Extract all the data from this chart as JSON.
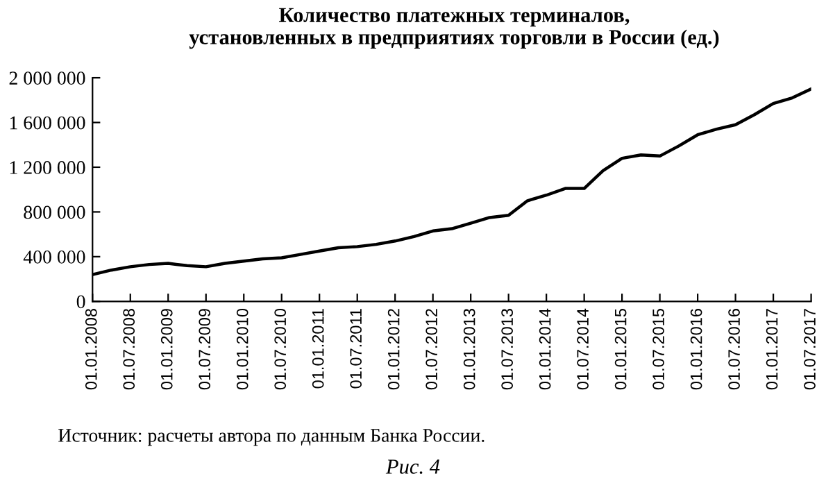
{
  "chart_data": {
    "type": "line",
    "title": "Количество платежных терминалов,\nустановленных в предприятиях торговли в России (ед.)",
    "categories": [
      "01.01.2008",
      null,
      "01.07.2008",
      null,
      "01.01.2009",
      null,
      "01.07.2009",
      null,
      "01.01.2010",
      null,
      "01.07.2010",
      null,
      "01.01.2011",
      null,
      "01.07.2011",
      null,
      "01.01.2012",
      null,
      "01.07.2012",
      null,
      "01.01.2013",
      null,
      "01.07.2013",
      null,
      "01.01.2014",
      null,
      "01.07.2014",
      null,
      "01.01.2015",
      null,
      "01.07.2015",
      null,
      "01.01.2016",
      null,
      "01.07.2016",
      null,
      "01.01.2017",
      null,
      "01.07.2017"
    ],
    "series": [
      {
        "color": "#000000",
        "values": [
          240000,
          280000,
          310000,
          330000,
          340000,
          320000,
          310000,
          340000,
          360000,
          380000,
          390000,
          420000,
          450000,
          480000,
          490000,
          510000,
          540000,
          580000,
          630000,
          650000,
          700000,
          750000,
          770000,
          900000,
          950000,
          1010000,
          1010000,
          1170000,
          1280000,
          1310000,
          1300000,
          1390000,
          1490000,
          1540000,
          1580000,
          1670000,
          1770000,
          1820000,
          1900000
        ]
      }
    ],
    "ylim": [
      0,
      2000000
    ],
    "yticks": [
      0,
      {
        "value": 400000,
        "label": "400 000"
      },
      {
        "value": 800000,
        "label": "800 000"
      },
      {
        "value": 1200000,
        "label": "1 200 000"
      },
      {
        "value": 1600000,
        "label": "1 600 000"
      },
      {
        "value": 2000000,
        "label": "2 000 000"
      }
    ],
    "grid": false,
    "legend": false,
    "marker": "none",
    "line_style": "solid",
    "annotations": [
      "Источник: расчеты автора по данным Банка России.",
      "Рис. 4"
    ]
  }
}
